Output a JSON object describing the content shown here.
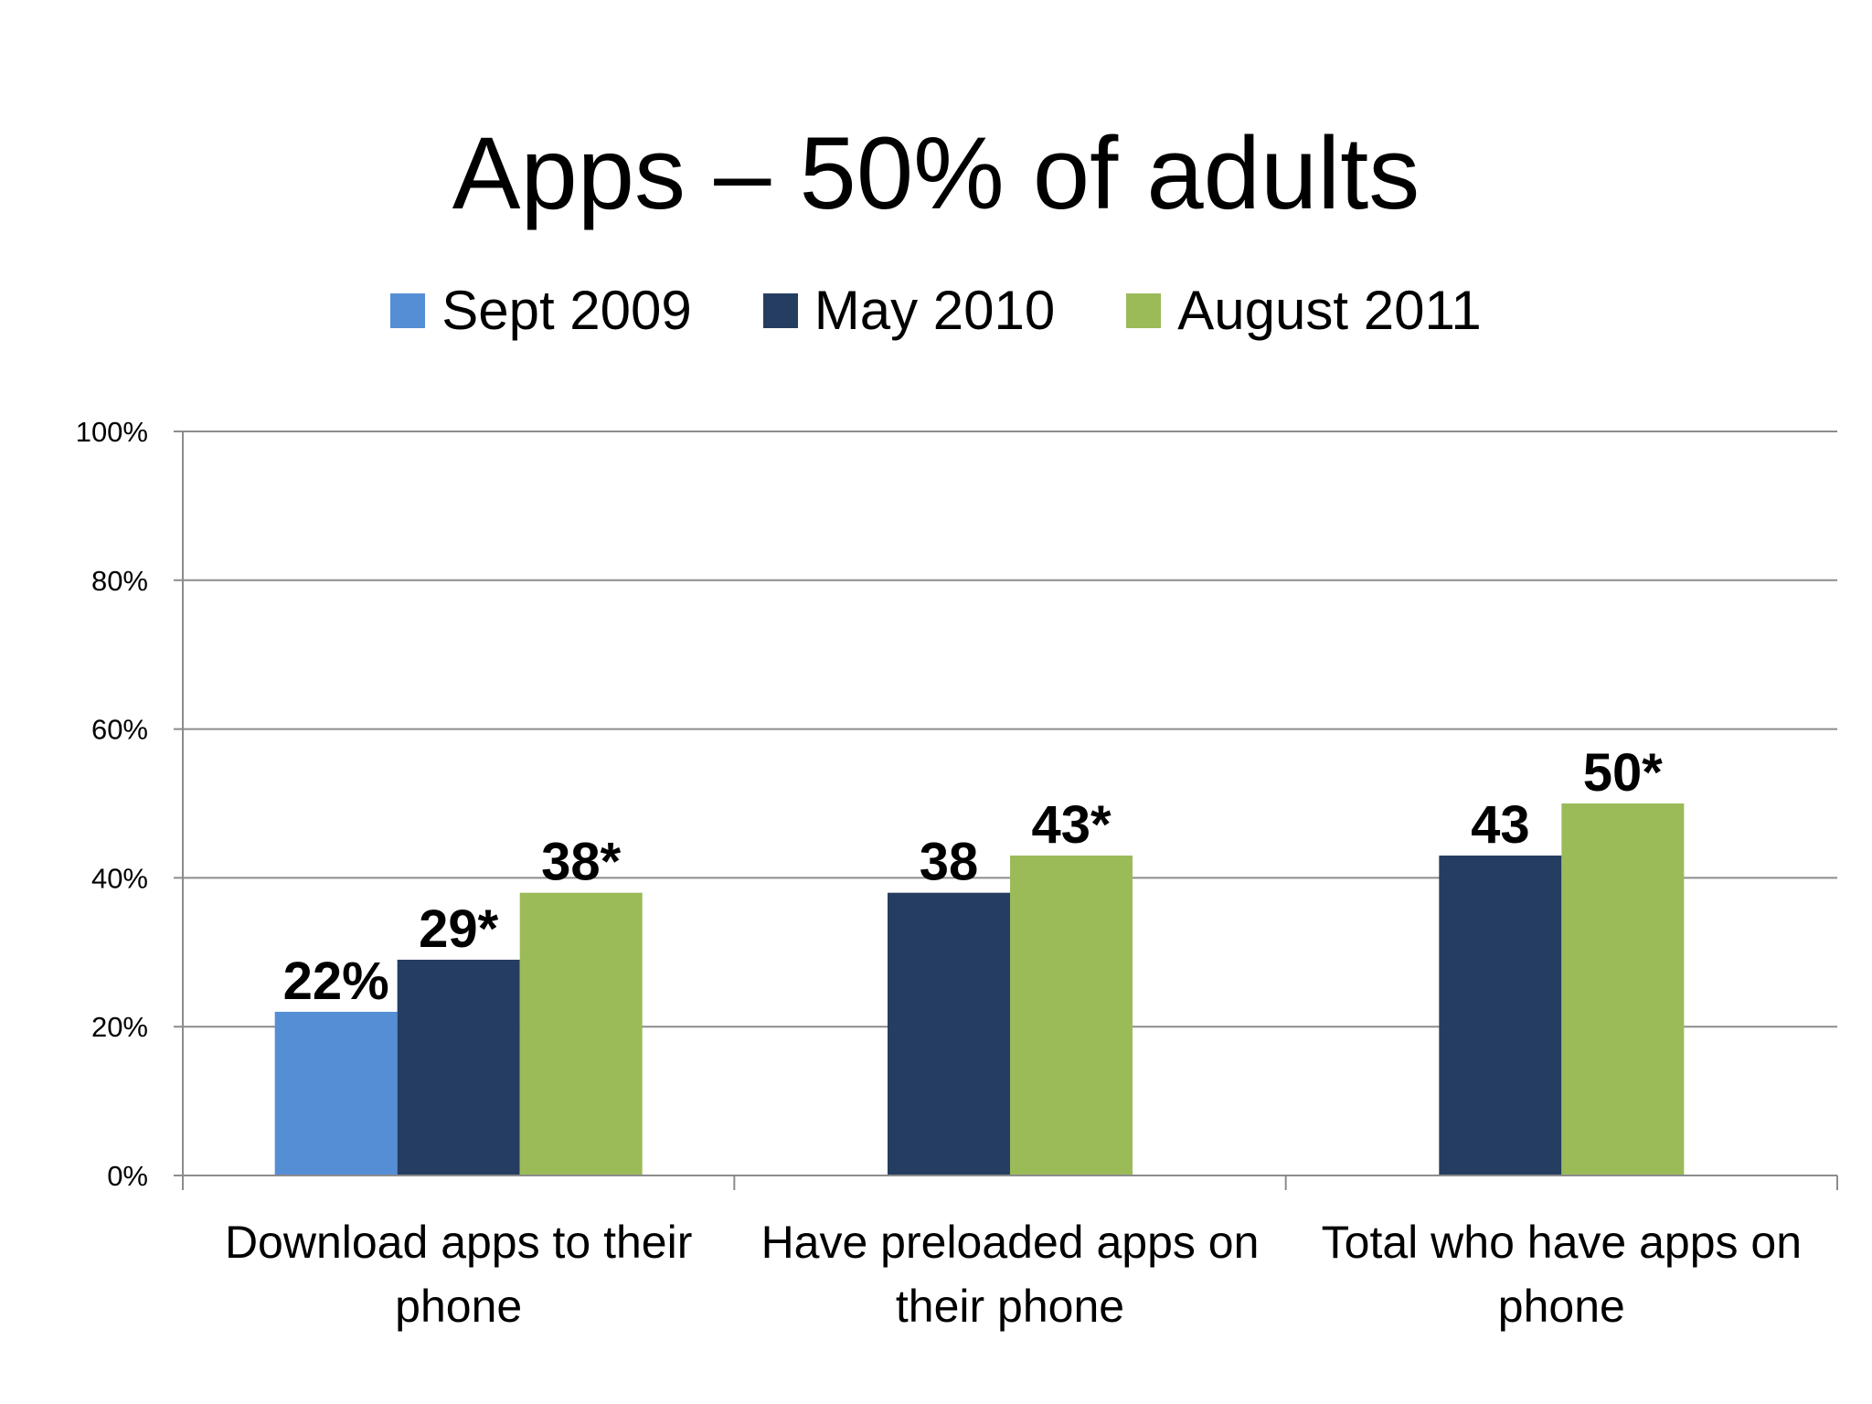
{
  "title": "Apps – 50% of adults",
  "chart_data": {
    "type": "bar",
    "title": "Apps – 50% of adults",
    "categories": [
      [
        "Download apps to their",
        "phone"
      ],
      [
        "Have preloaded apps on",
        "their phone"
      ],
      [
        "Total who have apps on",
        "phone"
      ]
    ],
    "series": [
      {
        "name": "Sept 2009",
        "color": "#558ED5",
        "values": [
          22,
          null,
          null
        ],
        "labels": [
          "22%",
          null,
          null
        ]
      },
      {
        "name": "May 2010",
        "color": "#253D61",
        "values": [
          29,
          38,
          43
        ],
        "labels": [
          "29*",
          "38",
          "43"
        ]
      },
      {
        "name": "August 2011",
        "color": "#9BBB59",
        "values": [
          38,
          43,
          50
        ],
        "labels": [
          "38*",
          "43*",
          "50*"
        ]
      }
    ],
    "ylim": [
      0,
      100
    ],
    "yticks": [
      "0%",
      "20%",
      "40%",
      "60%",
      "80%",
      "100%"
    ],
    "ytick_values": [
      0,
      20,
      40,
      60,
      80,
      100
    ],
    "grid": true,
    "legend_position": "top",
    "xlabel": "",
    "ylabel": ""
  }
}
